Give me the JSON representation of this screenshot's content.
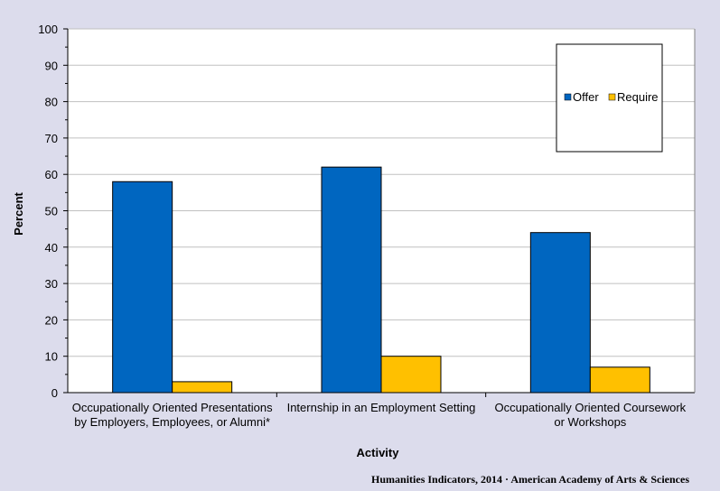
{
  "chart_data": {
    "type": "bar",
    "categories": [
      [
        "Occupationally Oriented Presentations",
        "by Employers, Employees, or Alumni*"
      ],
      [
        "Internship in an Employment Setting"
      ],
      [
        "Occupationally Oriented Coursework",
        "or Workshops"
      ]
    ],
    "series": [
      {
        "name": "Offer",
        "values": [
          58,
          62,
          44
        ],
        "color": "#0066c0"
      },
      {
        "name": "Require",
        "values": [
          3,
          10,
          7
        ],
        "color": "#ffc000"
      }
    ],
    "xlabel": "Activity",
    "ylabel": "Percent",
    "ylim": [
      0,
      100
    ],
    "yticks": [
      0,
      10,
      20,
      30,
      40,
      50,
      60,
      70,
      80,
      90,
      100
    ],
    "grid": true,
    "legend_position": "top-right"
  },
  "footer": {
    "source": "Humanities Indicators, 2014 · American Academy of Arts & Sciences"
  },
  "colors": {
    "background": "#dcdcec",
    "plot_area": "#ffffff",
    "gridline": "#c0c0c0"
  }
}
